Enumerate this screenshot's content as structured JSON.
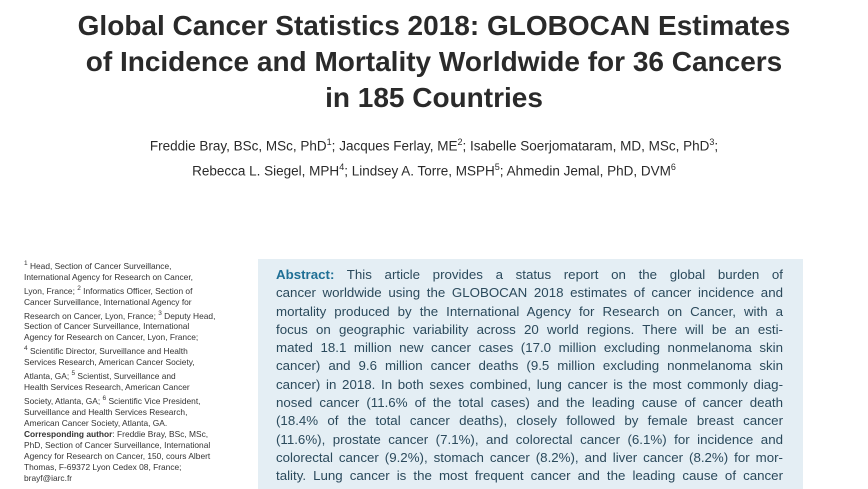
{
  "title": {
    "lines": [
      "Global Cancer Statistics 2018: GLOBOCAN Estimates",
      "of Incidence and Mortality Worldwide for 36 Cancers",
      "in 185 Countries"
    ]
  },
  "authors": [
    {
      "name": "Freddie Bray, BSc, MSc, PhD",
      "sup": "1",
      "sep": "; "
    },
    {
      "name": "Jacques Ferlay, ME",
      "sup": "2",
      "sep": "; "
    },
    {
      "name": "Isabelle Soerjomataram, MD, MSc, PhD",
      "sup": "3",
      "sep": ";"
    },
    {
      "name": "Rebecca L. Siegel, MPH",
      "sup": "4",
      "sep": "; "
    },
    {
      "name": "Lindsey A. Torre, MSPH",
      "sup": "5",
      "sep": "; "
    },
    {
      "name": "Ahmedin Jemal, PhD, DVM",
      "sup": "6",
      "sep": ""
    }
  ],
  "affiliations": {
    "lines": [
      {
        "sup": "1",
        "text": " Head, Section of Cancer Surveillance,"
      },
      {
        "sup": "",
        "text": "International Agency for Research on Cancer,"
      },
      {
        "sup": "",
        "text": "Lyon, France; ",
        "sup2": "2",
        "text2": " Informatics Officer, Section of"
      },
      {
        "sup": "",
        "text": "Cancer Surveillance, International Agency for"
      },
      {
        "sup": "",
        "text": "Research on Cancer, Lyon, France; ",
        "sup2": "3",
        "text2": " Deputy Head,"
      },
      {
        "sup": "",
        "text": "Section of Cancer Surveillance, International"
      },
      {
        "sup": "",
        "text": "Agency for Research on Cancer, Lyon, France;"
      },
      {
        "sup": "4",
        "text": " Scientific Director, Surveillance and Health"
      },
      {
        "sup": "",
        "text": "Services Research, American Cancer Society,"
      },
      {
        "sup": "",
        "text": "Atlanta, GA; ",
        "sup2": "5",
        "text2": " Scientist, Surveillance and"
      },
      {
        "sup": "",
        "text": "Health Services Research, American Cancer"
      },
      {
        "sup": "",
        "text": "Society, Atlanta, GA; ",
        "sup2": "6",
        "text2": " Scientific Vice President,"
      },
      {
        "sup": "",
        "text": "Surveillance and Health Services Research,"
      },
      {
        "sup": "",
        "text": "American Cancer Society, Atlanta, GA."
      }
    ]
  },
  "corresponding": {
    "label": "Corresponding author",
    "lines": [
      ": Freddie Bray, BSc, MSc,",
      "PhD, Section of Cancer Surveillance, International",
      "Agency for Research on Cancer, 150, cours Albert",
      "Thomas, F-69372 Lyon Cedex 08, France;",
      "brayf@iarc.fr"
    ]
  },
  "abstract": {
    "label": "Abstract:",
    "first_line": " This article provides a status report on the global burden of",
    "lines": [
      "cancer worldwide using the GLOBOCAN 2018 estimates of cancer incidence and",
      "mortality produced by the International Agency for Research on Cancer, with a",
      "focus on geographic variability across 20 world regions. There will be an esti-",
      "mated 18.1 million new cancer cases (17.0 million excluding nonmelanoma skin",
      "cancer) and 9.6 million cancer deaths (9.5 million excluding nonmelanoma skin",
      "cancer) in 2018. In both sexes combined, lung cancer is the most commonly diag-",
      "nosed cancer (11.6% of the total cases) and the leading cause of cancer death",
      "(18.4% of the total cancer deaths), closely followed by female breast cancer",
      "(11.6%), prostate cancer (7.1%), and colorectal cancer (6.1%) for incidence and",
      "colorectal cancer (9.2%), stomach cancer (8.2%), and liver cancer (8.2%) for mor-",
      "tality. Lung cancer is the most frequent cancer and the leading cause of cancer"
    ]
  }
}
